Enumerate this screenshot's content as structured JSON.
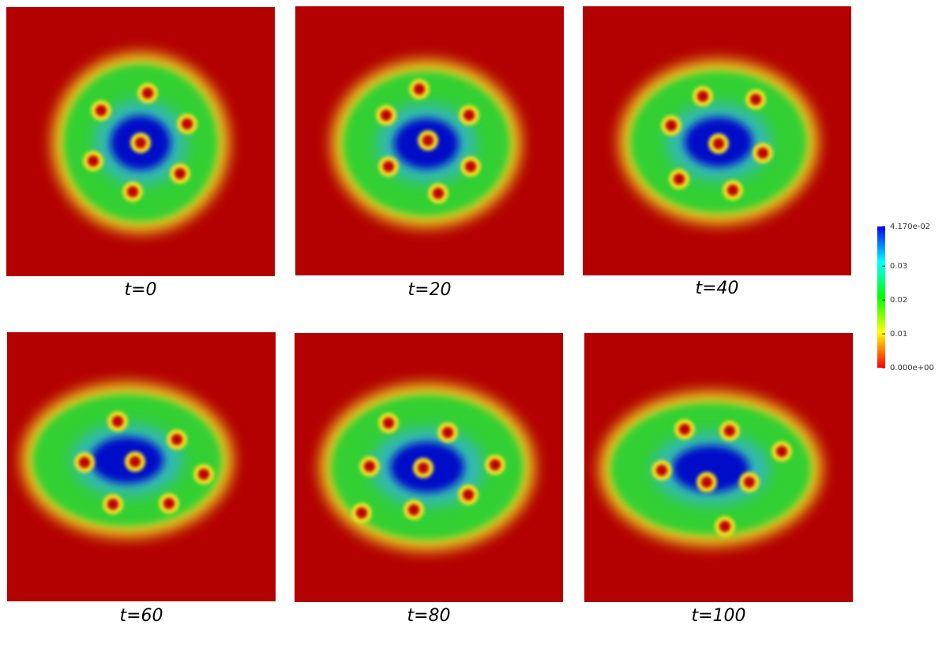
{
  "panels": [
    {
      "label": "t=0"
    },
    {
      "label": "t=20"
    },
    {
      "label": "t=40"
    },
    {
      "label": "t=60"
    },
    {
      "label": "t=80"
    },
    {
      "label": "t=100"
    }
  ],
  "colorbar": {
    "range": [
      0,
      0.0417
    ],
    "ticks": [
      {
        "value": 0.0417,
        "label": "4.170e-02"
      },
      0.03,
      0.02,
      0.01,
      {
        "value": 0,
        "label": "0.000e+00"
      }
    ]
  }
}
